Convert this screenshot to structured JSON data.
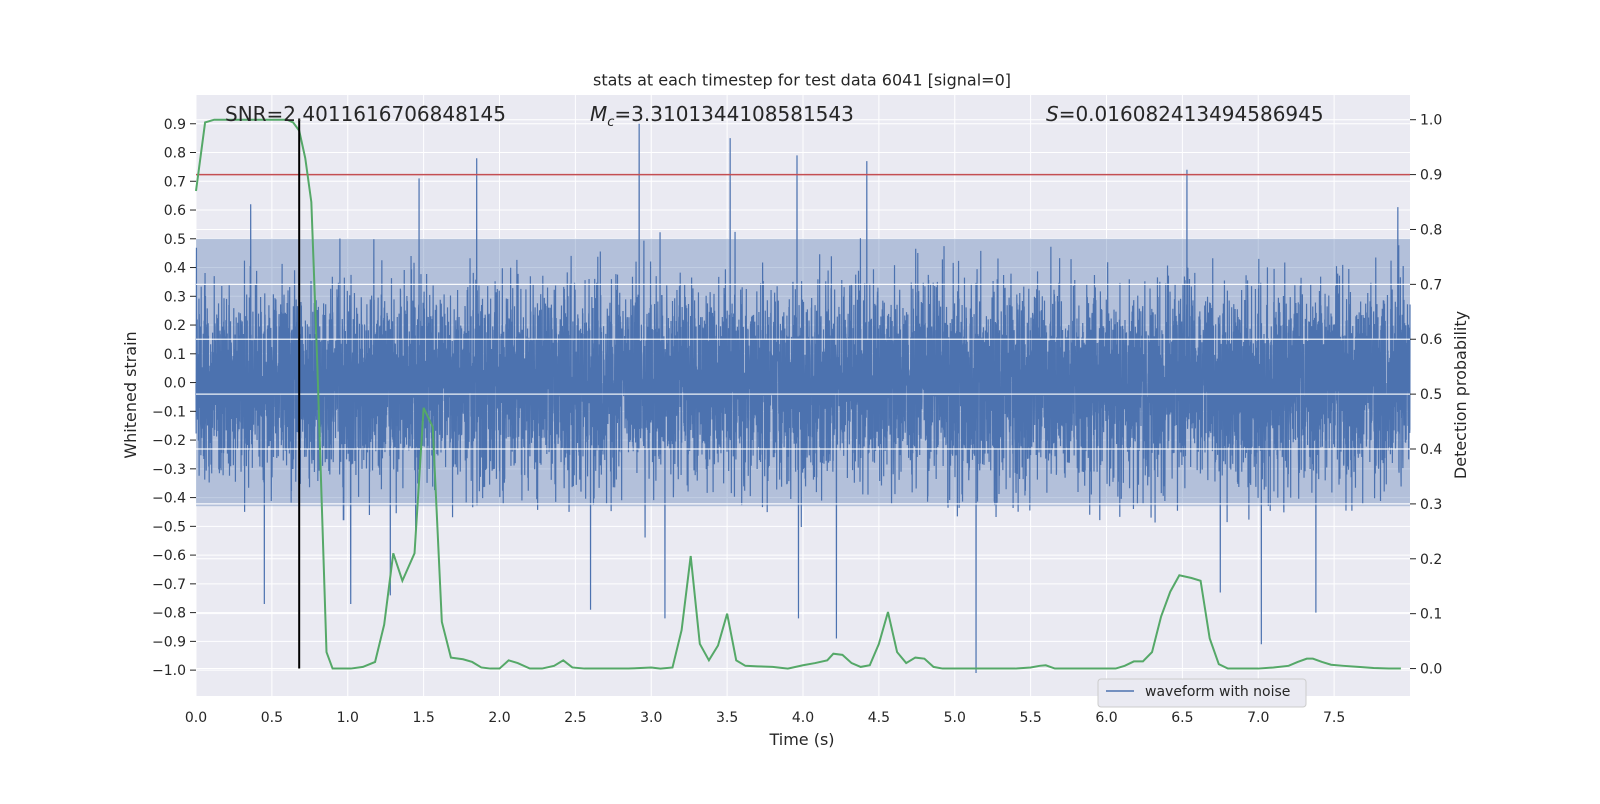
{
  "chart_data": {
    "type": "line",
    "title": "stats at each timestep for test data 6041 [signal=0]",
    "xlabel": "Time (s)",
    "ylabel": "Whitened strain",
    "y2label": "Detection probability",
    "xlim": [
      0.0,
      8.0
    ],
    "ylim": [
      -1.09,
      1.0
    ],
    "y2lim": [
      -0.05,
      1.045
    ],
    "xticks": [
      "0.0",
      "0.5",
      "1.0",
      "1.5",
      "2.0",
      "2.5",
      "3.0",
      "3.5",
      "4.0",
      "4.5",
      "5.0",
      "5.5",
      "6.0",
      "6.5",
      "7.0",
      "7.5"
    ],
    "yticks": [
      "0.9",
      "0.8",
      "0.7",
      "0.6",
      "0.5",
      "0.4",
      "0.3",
      "0.2",
      "0.1",
      "0.0",
      "−0.1",
      "−0.2",
      "−0.3",
      "−0.4",
      "−0.5",
      "−0.6",
      "−0.7",
      "−0.8",
      "−0.9",
      "−1.0"
    ],
    "y2ticks": [
      "1.0",
      "0.9",
      "0.8",
      "0.7",
      "0.6",
      "0.5",
      "0.4",
      "0.3",
      "0.2",
      "0.1",
      "0.0"
    ],
    "grid": true,
    "legend_position": "bottom-right",
    "annotations": {
      "snr": "SNR=2.4011616706848145",
      "mc_symbol": "M",
      "mc_sub": "c",
      "mc_value": "=3.3101344108581543",
      "s_symbol": "S",
      "s_value": "=0.016082413494586945"
    },
    "marker_time": 0.68,
    "threshold_probability": 0.9,
    "series": [
      {
        "name": "waveform with noise",
        "color": "#4c72b0",
        "kind": "noise-strain",
        "samples": 8192,
        "core_band": [
          -0.43,
          0.5
        ],
        "notable_peaks": [
          {
            "t": 2.92,
            "y": 0.9
          },
          {
            "t": 3.52,
            "y": 0.85
          },
          {
            "t": 1.85,
            "y": 0.78
          },
          {
            "t": 3.96,
            "y": 0.79
          },
          {
            "t": 4.42,
            "y": 0.77
          },
          {
            "t": 6.53,
            "y": 0.74
          },
          {
            "t": 1.47,
            "y": 0.71
          },
          {
            "t": 0.36,
            "y": 0.62
          },
          {
            "t": 7.92,
            "y": 0.61
          }
        ],
        "notable_troughs": [
          {
            "t": 5.14,
            "y": -1.01
          },
          {
            "t": 7.02,
            "y": -0.91
          },
          {
            "t": 4.22,
            "y": -0.89
          },
          {
            "t": 3.09,
            "y": -0.82
          },
          {
            "t": 3.97,
            "y": -0.82
          },
          {
            "t": 7.38,
            "y": -0.8
          },
          {
            "t": 2.6,
            "y": -0.79
          },
          {
            "t": 0.45,
            "y": -0.77
          },
          {
            "t": 1.02,
            "y": -0.77
          },
          {
            "t": 1.28,
            "y": -0.74
          },
          {
            "t": 6.75,
            "y": -0.73
          }
        ]
      },
      {
        "name": "",
        "color": "#55a868",
        "kind": "detection-probability",
        "x": [
          0.0,
          0.06,
          0.12,
          0.2,
          0.3,
          0.4,
          0.5,
          0.6,
          0.64,
          0.68,
          0.72,
          0.76,
          0.8,
          0.86,
          0.9,
          0.96,
          1.02,
          1.1,
          1.18,
          1.24,
          1.3,
          1.36,
          1.44,
          1.5,
          1.56,
          1.62,
          1.68,
          1.76,
          1.82,
          1.88,
          1.94,
          2.0,
          2.06,
          2.12,
          2.2,
          2.28,
          2.36,
          2.42,
          2.48,
          2.56,
          2.7,
          2.85,
          3.0,
          3.06,
          3.14,
          3.2,
          3.26,
          3.32,
          3.38,
          3.44,
          3.5,
          3.56,
          3.62,
          3.7,
          3.8,
          3.9,
          4.0,
          4.08,
          4.16,
          4.2,
          4.26,
          4.32,
          4.38,
          4.44,
          4.5,
          4.56,
          4.62,
          4.68,
          4.74,
          4.8,
          4.86,
          4.92,
          5.0,
          5.2,
          5.4,
          5.5,
          5.56,
          5.6,
          5.66,
          5.74,
          5.9,
          6.06,
          6.12,
          6.18,
          6.24,
          6.3,
          6.36,
          6.42,
          6.48,
          6.56,
          6.62,
          6.68,
          6.74,
          6.8,
          6.9,
          7.0,
          7.1,
          7.2,
          7.26,
          7.32,
          7.36,
          7.42,
          7.48,
          7.56,
          7.66,
          7.76,
          7.86,
          7.94
        ],
        "y": [
          0.87,
          0.995,
          1.0,
          1.0,
          1.0,
          1.0,
          1.0,
          1.0,
          0.995,
          0.98,
          0.93,
          0.85,
          0.55,
          0.03,
          0.0,
          0.0,
          0.0,
          0.003,
          0.012,
          0.08,
          0.21,
          0.16,
          0.21,
          0.475,
          0.44,
          0.085,
          0.02,
          0.017,
          0.012,
          0.002,
          0.0,
          0.0,
          0.015,
          0.01,
          0.0,
          0.0,
          0.005,
          0.015,
          0.002,
          0.0,
          0.0,
          0.0,
          0.002,
          0.0,
          0.002,
          0.07,
          0.205,
          0.045,
          0.015,
          0.042,
          0.1,
          0.015,
          0.005,
          0.004,
          0.003,
          0.0,
          0.006,
          0.01,
          0.015,
          0.027,
          0.025,
          0.01,
          0.003,
          0.006,
          0.045,
          0.103,
          0.03,
          0.01,
          0.02,
          0.018,
          0.003,
          0.0,
          0.0,
          0.0,
          0.0,
          0.002,
          0.005,
          0.006,
          0.0,
          0.0,
          0.0,
          0.0,
          0.005,
          0.013,
          0.013,
          0.03,
          0.095,
          0.14,
          0.17,
          0.165,
          0.16,
          0.055,
          0.008,
          0.0,
          0.0,
          0.0,
          0.002,
          0.005,
          0.012,
          0.018,
          0.018,
          0.012,
          0.007,
          0.005,
          0.003,
          0.001,
          0.0,
          0.0
        ]
      },
      {
        "name": "",
        "color": "#c44e52",
        "kind": "threshold",
        "value": 0.9
      },
      {
        "name": "",
        "color": "#000000",
        "kind": "time-marker",
        "value": 0.68
      }
    ]
  }
}
